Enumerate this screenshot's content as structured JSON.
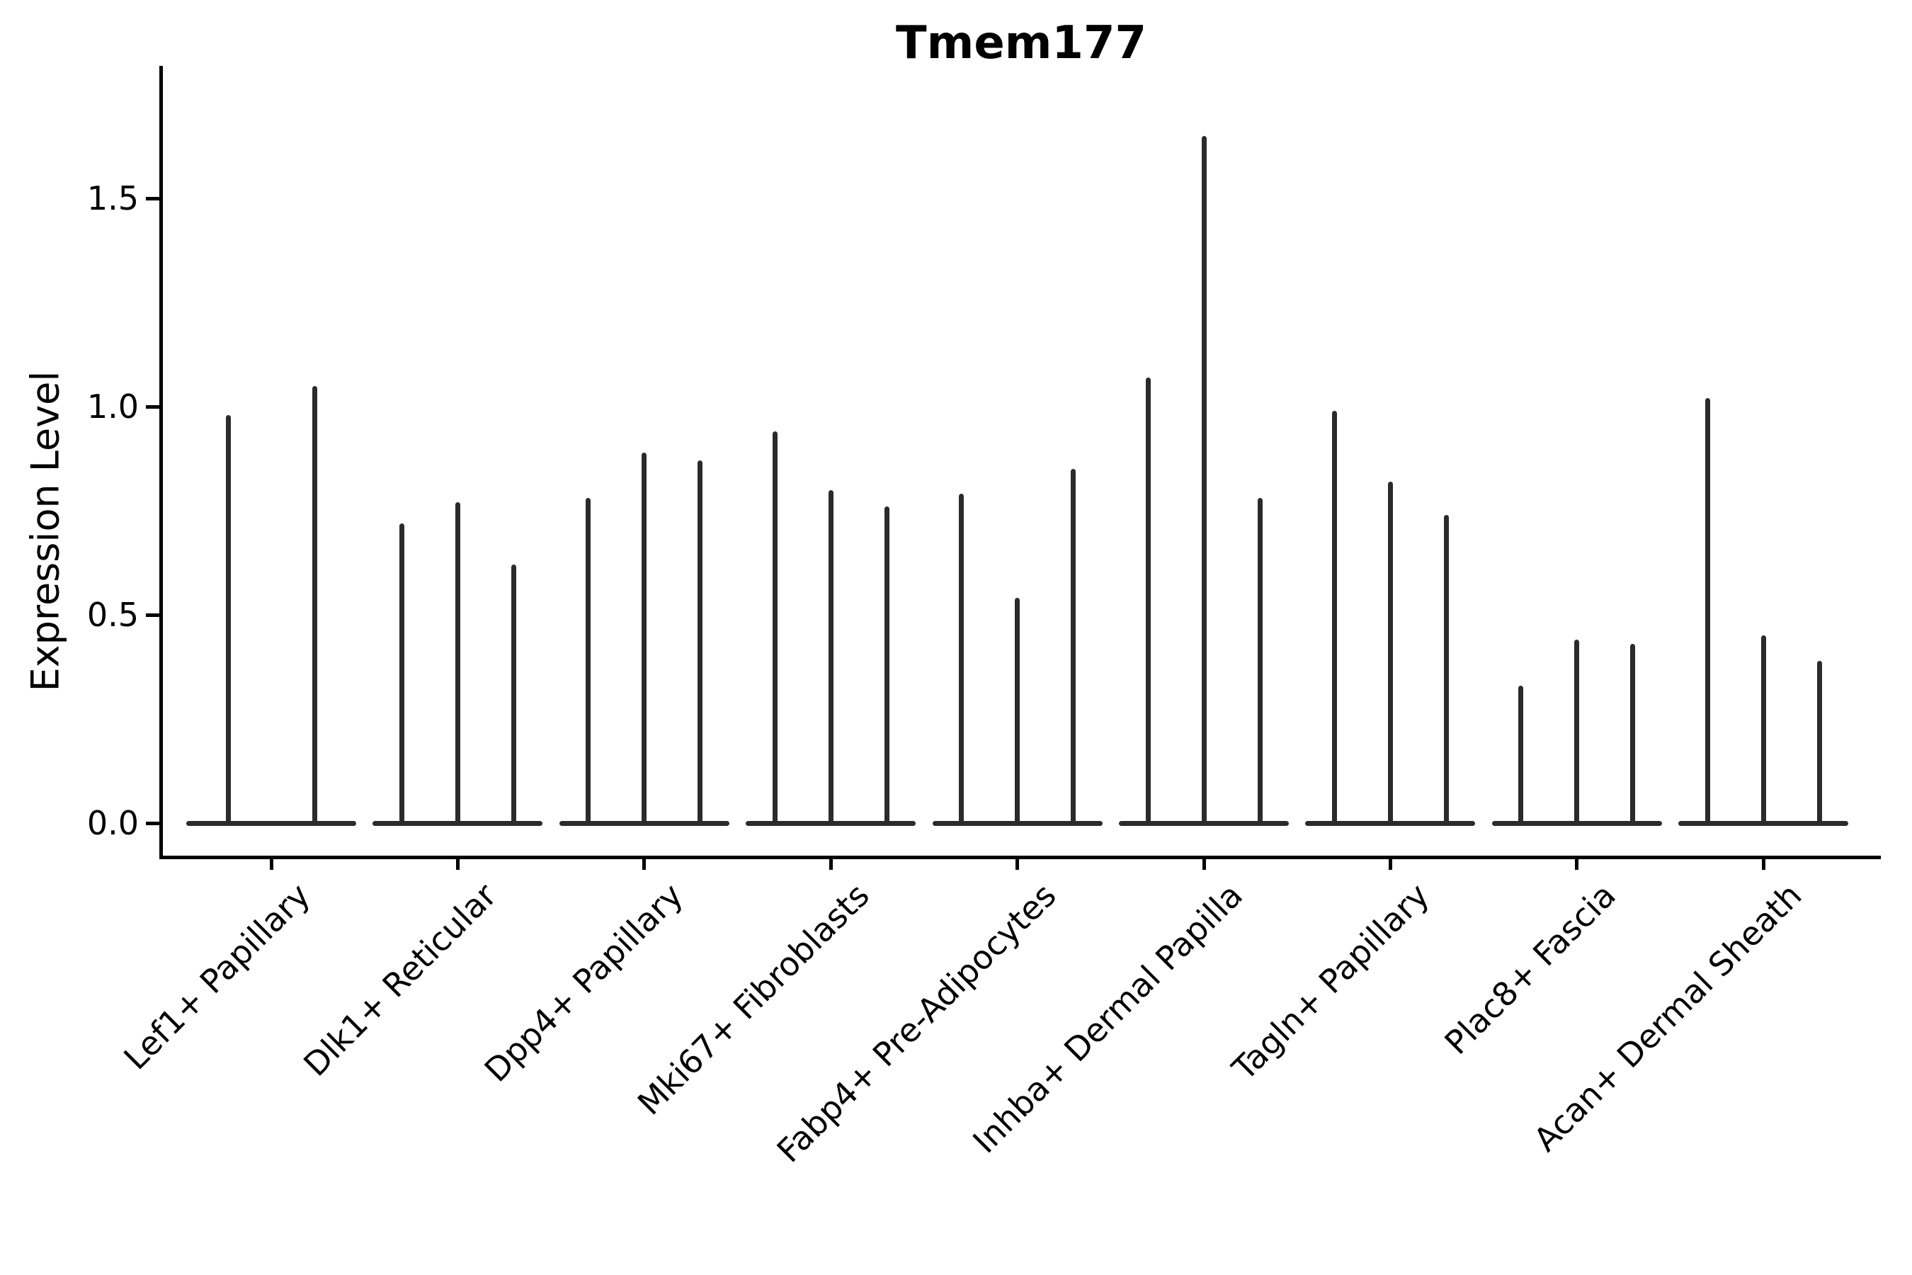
{
  "chart_data": {
    "type": "violin",
    "style": "collapsed near-zero-width spike violins, 2-3 violins per category, black outline on white, only left and bottom spines",
    "title": "Tmem177",
    "ylabel": "Expression Level",
    "xlabel": "",
    "ytick_labels": [
      "0.0",
      "0.5",
      "1.0",
      "1.5"
    ],
    "ytick_values": [
      0.0,
      0.5,
      1.0,
      1.5
    ],
    "ylim": [
      -0.08,
      1.82
    ],
    "grid": false,
    "legend": "none",
    "categories": [
      "Lef1+ Papillary",
      "Dlk1+ Reticular",
      "Dpp4+ Papillary",
      "Mki67+ Fibroblasts",
      "Fabp4+ Pre-Adipocytes",
      "Inhba+ Dermal Papilla",
      "Tagln+ Papillary",
      "Plac8+ Fascia",
      "Acan+ Dermal Sheath"
    ],
    "groups": [
      {
        "category": "Lef1+ Papillary",
        "violin_max_values": [
          0.98,
          1.05
        ]
      },
      {
        "category": "Dlk1+ Reticular",
        "violin_max_values": [
          0.72,
          0.77,
          0.62
        ]
      },
      {
        "category": "Dpp4+ Papillary",
        "violin_max_values": [
          0.78,
          0.89,
          0.87
        ]
      },
      {
        "category": "Mki67+ Fibroblasts",
        "violin_max_values": [
          0.94,
          0.8,
          0.76
        ]
      },
      {
        "category": "Fabp4+ Pre-Adipocytes",
        "violin_max_values": [
          0.79,
          0.54,
          0.85
        ]
      },
      {
        "category": "Inhba+ Dermal Papilla",
        "violin_max_values": [
          1.07,
          1.65,
          0.78
        ]
      },
      {
        "category": "Tagln+ Papillary",
        "violin_max_values": [
          0.99,
          0.82,
          0.74
        ]
      },
      {
        "category": "Plac8+ Fascia",
        "violin_max_values": [
          0.33,
          0.44,
          0.43
        ]
      },
      {
        "category": "Acan+ Dermal Sheath",
        "violin_max_values": [
          1.02,
          0.45,
          0.39
        ]
      }
    ],
    "colors": {
      "spike": "#2b2b2b",
      "axis": "#000000",
      "text": "#000000",
      "background": "#ffffff"
    }
  }
}
